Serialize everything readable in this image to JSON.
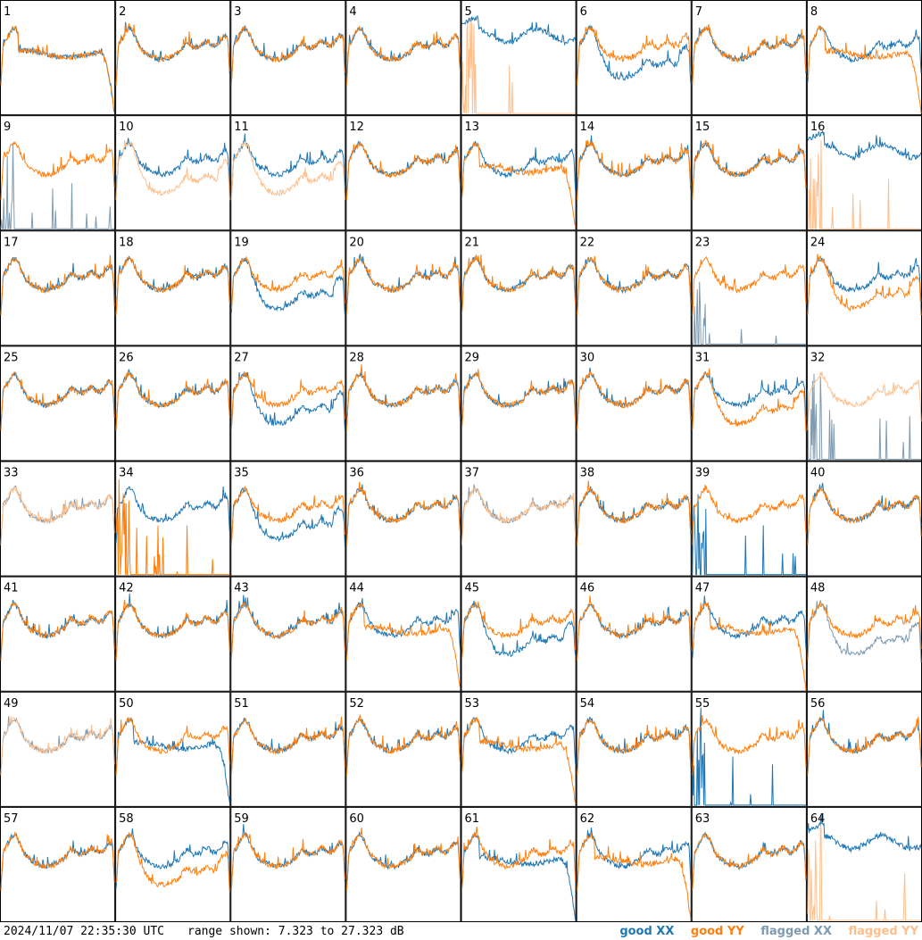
{
  "chart_data": {
    "type": "line",
    "title": "",
    "layout_rows": 8,
    "layout_cols": 8,
    "y_units": "dB",
    "ylim": [
      7.323,
      27.323
    ],
    "timestamp": "2024/11/07 22:35:30 UTC",
    "range_text": "range shown: 7.323 to 27.323 dB",
    "legend": [
      {
        "key": "good_xx",
        "label": "good XX",
        "color": "#1f77b4"
      },
      {
        "key": "good_yy",
        "label": "good YY",
        "color": "#ff7f0e"
      },
      {
        "key": "flagged_xx",
        "label": "flagged XX",
        "color": "#7f9bb0"
      },
      {
        "key": "flagged_yy",
        "label": "flagged YY",
        "color": "#ffbf8c"
      }
    ],
    "panels": [
      {
        "id": "1",
        "xx": "dip",
        "yy": "dip",
        "fx": false,
        "fy": false
      },
      {
        "id": "2",
        "xx": "normal",
        "yy": "normal",
        "fx": false,
        "fy": false
      },
      {
        "id": "3",
        "xx": "normal",
        "yy": "normal",
        "fx": false,
        "fy": false
      },
      {
        "id": "4",
        "xx": "normal",
        "yy": "normal",
        "fx": false,
        "fy": false
      },
      {
        "id": "5",
        "xx": "high",
        "yy": "spike",
        "fx": false,
        "fy": true
      },
      {
        "id": "6",
        "xx": "low",
        "yy": "normal",
        "fx": false,
        "fy": false
      },
      {
        "id": "7",
        "xx": "normal",
        "yy": "normal",
        "fx": false,
        "fy": false
      },
      {
        "id": "8",
        "xx": "normal",
        "yy": "dip",
        "fx": false,
        "fy": false
      },
      {
        "id": "9",
        "xx": "spike",
        "yy": "normal",
        "fx": true,
        "fy": false
      },
      {
        "id": "10",
        "xx": "normal",
        "yy": "low",
        "fx": false,
        "fy": true
      },
      {
        "id": "11",
        "xx": "normal",
        "yy": "low",
        "fx": false,
        "fy": true
      },
      {
        "id": "12",
        "xx": "normal",
        "yy": "normal",
        "fx": false,
        "fy": false
      },
      {
        "id": "13",
        "xx": "normal",
        "yy": "dip",
        "fx": false,
        "fy": false
      },
      {
        "id": "14",
        "xx": "normal",
        "yy": "normal",
        "fx": false,
        "fy": false
      },
      {
        "id": "15",
        "xx": "normal",
        "yy": "normal",
        "fx": false,
        "fy": false
      },
      {
        "id": "16",
        "xx": "high",
        "yy": "spike",
        "fx": false,
        "fy": true
      },
      {
        "id": "17",
        "xx": "normal",
        "yy": "normal",
        "fx": false,
        "fy": false
      },
      {
        "id": "18",
        "xx": "normal",
        "yy": "normal",
        "fx": false,
        "fy": false
      },
      {
        "id": "19",
        "xx": "low",
        "yy": "normal",
        "fx": false,
        "fy": false
      },
      {
        "id": "20",
        "xx": "normal",
        "yy": "normal",
        "fx": false,
        "fy": false
      },
      {
        "id": "21",
        "xx": "normal",
        "yy": "normal",
        "fx": false,
        "fy": false
      },
      {
        "id": "22",
        "xx": "normal",
        "yy": "normal",
        "fx": false,
        "fy": false
      },
      {
        "id": "23",
        "xx": "spike",
        "yy": "normal",
        "fx": true,
        "fy": false
      },
      {
        "id": "24",
        "xx": "normal",
        "yy": "low",
        "fx": false,
        "fy": false
      },
      {
        "id": "25",
        "xx": "normal",
        "yy": "normal",
        "fx": false,
        "fy": false
      },
      {
        "id": "26",
        "xx": "normal",
        "yy": "normal",
        "fx": false,
        "fy": false
      },
      {
        "id": "27",
        "xx": "low",
        "yy": "normal",
        "fx": false,
        "fy": false
      },
      {
        "id": "28",
        "xx": "normal",
        "yy": "normal",
        "fx": false,
        "fy": false
      },
      {
        "id": "29",
        "xx": "normal",
        "yy": "normal",
        "fx": false,
        "fy": false
      },
      {
        "id": "30",
        "xx": "normal",
        "yy": "normal",
        "fx": false,
        "fy": false
      },
      {
        "id": "31",
        "xx": "normal",
        "yy": "low",
        "fx": false,
        "fy": false
      },
      {
        "id": "32",
        "xx": "spike",
        "yy": "normal",
        "fx": true,
        "fy": true
      },
      {
        "id": "33",
        "xx": "normal",
        "yy": "normal",
        "fx": true,
        "fy": true
      },
      {
        "id": "34",
        "xx": "normal",
        "yy": "spike",
        "fx": false,
        "fy": false
      },
      {
        "id": "35",
        "xx": "low",
        "yy": "normal",
        "fx": false,
        "fy": false
      },
      {
        "id": "36",
        "xx": "normal",
        "yy": "normal",
        "fx": false,
        "fy": false
      },
      {
        "id": "37",
        "xx": "normal",
        "yy": "normal",
        "fx": true,
        "fy": true
      },
      {
        "id": "38",
        "xx": "normal",
        "yy": "normal",
        "fx": false,
        "fy": false
      },
      {
        "id": "39",
        "xx": "spike",
        "yy": "normal",
        "fx": false,
        "fy": false
      },
      {
        "id": "40",
        "xx": "normal",
        "yy": "normal",
        "fx": false,
        "fy": false
      },
      {
        "id": "41",
        "xx": "normal",
        "yy": "normal",
        "fx": false,
        "fy": false
      },
      {
        "id": "42",
        "xx": "normal",
        "yy": "normal",
        "fx": false,
        "fy": false
      },
      {
        "id": "43",
        "xx": "normal",
        "yy": "normal",
        "fx": false,
        "fy": false
      },
      {
        "id": "44",
        "xx": "normal",
        "yy": "dip",
        "fx": false,
        "fy": false
      },
      {
        "id": "45",
        "xx": "low",
        "yy": "normal",
        "fx": false,
        "fy": false
      },
      {
        "id": "46",
        "xx": "normal",
        "yy": "normal",
        "fx": false,
        "fy": false
      },
      {
        "id": "47",
        "xx": "normal",
        "yy": "dip",
        "fx": false,
        "fy": false
      },
      {
        "id": "48",
        "xx": "low",
        "yy": "normal",
        "fx": true,
        "fy": false
      },
      {
        "id": "49",
        "xx": "normal",
        "yy": "normal",
        "fx": true,
        "fy": true
      },
      {
        "id": "50",
        "xx": "dip",
        "yy": "normal",
        "fx": false,
        "fy": false
      },
      {
        "id": "51",
        "xx": "normal",
        "yy": "normal",
        "fx": false,
        "fy": false
      },
      {
        "id": "52",
        "xx": "normal",
        "yy": "normal",
        "fx": false,
        "fy": false
      },
      {
        "id": "53",
        "xx": "normal",
        "yy": "dip",
        "fx": false,
        "fy": false
      },
      {
        "id": "54",
        "xx": "normal",
        "yy": "normal",
        "fx": false,
        "fy": false
      },
      {
        "id": "55",
        "xx": "spike",
        "yy": "normal",
        "fx": false,
        "fy": false
      },
      {
        "id": "56",
        "xx": "normal",
        "yy": "normal",
        "fx": false,
        "fy": false
      },
      {
        "id": "57",
        "xx": "normal",
        "yy": "normal",
        "fx": false,
        "fy": false
      },
      {
        "id": "58",
        "xx": "normal",
        "yy": "low",
        "fx": false,
        "fy": false
      },
      {
        "id": "59",
        "xx": "normal",
        "yy": "normal",
        "fx": false,
        "fy": false
      },
      {
        "id": "60",
        "xx": "normal",
        "yy": "normal",
        "fx": false,
        "fy": false
      },
      {
        "id": "61",
        "xx": "dip",
        "yy": "normal",
        "fx": false,
        "fy": false
      },
      {
        "id": "62",
        "xx": "normal",
        "yy": "dip",
        "fx": false,
        "fy": false
      },
      {
        "id": "63",
        "xx": "normal",
        "yy": "normal",
        "fx": false,
        "fy": false
      },
      {
        "id": "64",
        "xx": "high",
        "yy": "spike",
        "fx": false,
        "fy": true
      }
    ]
  }
}
